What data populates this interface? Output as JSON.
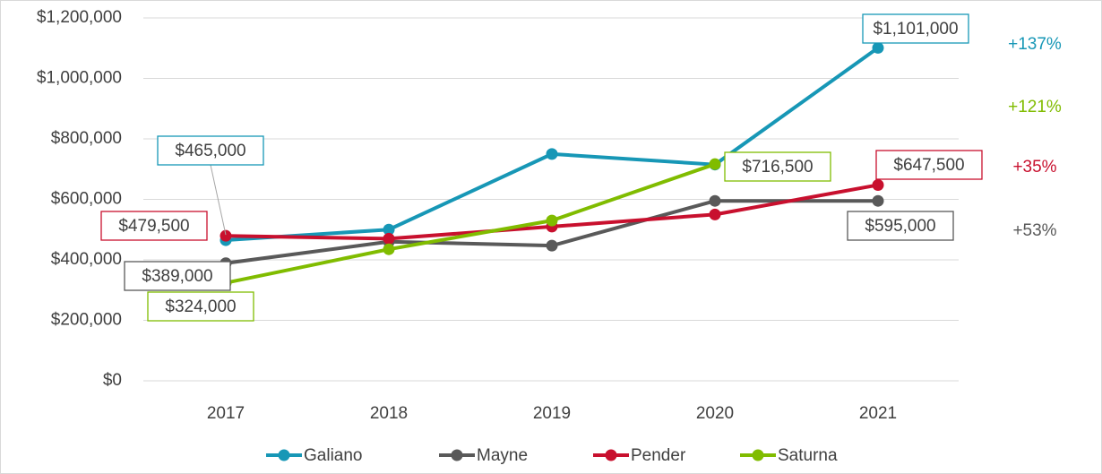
{
  "chart_data": {
    "type": "line",
    "categories": [
      "2017",
      "2018",
      "2019",
      "2020",
      "2021"
    ],
    "series": [
      {
        "name": "Galiano",
        "color": "#1797b6",
        "values": [
          465000,
          500000,
          750000,
          715000,
          1101000
        ],
        "value_labels": [
          "$465,000",
          null,
          null,
          null,
          "$1,101,000"
        ]
      },
      {
        "name": "Mayne",
        "color": "#595959",
        "values": [
          389000,
          460000,
          447000,
          595000,
          595000
        ],
        "value_labels": [
          "$389,000",
          null,
          null,
          null,
          "$595,000"
        ]
      },
      {
        "name": "Pender",
        "color": "#c8102e",
        "values": [
          479500,
          470000,
          510000,
          550000,
          647500
        ],
        "value_labels": [
          "$479,500",
          null,
          null,
          null,
          "$647,500"
        ]
      },
      {
        "name": "Saturna",
        "color": "#80bc00",
        "values": [
          324000,
          435000,
          530000,
          716500,
          null
        ],
        "value_labels": [
          "$324,000",
          null,
          null,
          "$716,500",
          null
        ]
      }
    ],
    "annotations": [
      {
        "text": "+137%",
        "color": "#1797b6"
      },
      {
        "text": "+121%",
        "color": "#80bc00"
      },
      {
        "text": "+35%",
        "color": "#c8102e"
      },
      {
        "text": "+53%",
        "color": "#595959"
      }
    ],
    "ylim": [
      0,
      1200000
    ],
    "yticks": [
      {
        "value": 0,
        "label": "$0"
      },
      {
        "value": 200000,
        "label": "$200,000"
      },
      {
        "value": 400000,
        "label": "$400,000"
      },
      {
        "value": 600000,
        "label": "$600,000"
      },
      {
        "value": 800000,
        "label": "$800,000"
      },
      {
        "value": 1000000,
        "label": "$1,000,000"
      },
      {
        "value": 1200000,
        "label": "$1,200,000"
      }
    ],
    "grid": true,
    "legend": "bottom"
  }
}
